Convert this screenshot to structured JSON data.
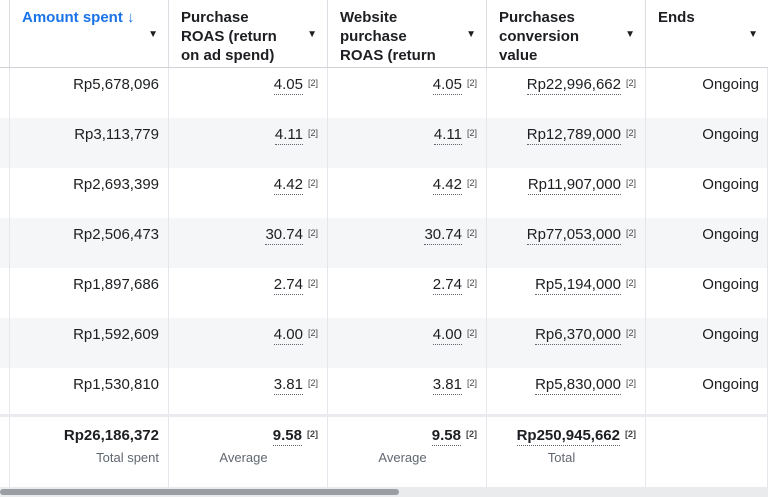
{
  "headers": [
    {
      "label": "Amount spent ↓",
      "sorted": true
    },
    {
      "label": "Purchase ROAS (return on ad spend)"
    },
    {
      "label": "Website purchase ROAS (return on ad…"
    },
    {
      "label": "Purchases conversion value"
    },
    {
      "label": "Ends"
    }
  ],
  "caret_glyph": "▼",
  "footnote": "[2]",
  "rows": [
    {
      "amount": "Rp5,678,096",
      "roas": "4.05",
      "web_roas": "4.05",
      "value": "Rp22,996,662",
      "ends": "Ongoing"
    },
    {
      "amount": "Rp3,113,779",
      "roas": "4.11",
      "web_roas": "4.11",
      "value": "Rp12,789,000",
      "ends": "Ongoing"
    },
    {
      "amount": "Rp2,693,399",
      "roas": "4.42",
      "web_roas": "4.42",
      "value": "Rp11,907,000",
      "ends": "Ongoing"
    },
    {
      "amount": "Rp2,506,473",
      "roas": "30.74",
      "web_roas": "30.74",
      "value": "Rp77,053,000",
      "ends": "Ongoing"
    },
    {
      "amount": "Rp1,897,686",
      "roas": "2.74",
      "web_roas": "2.74",
      "value": "Rp5,194,000",
      "ends": "Ongoing"
    },
    {
      "amount": "Rp1,592,609",
      "roas": "4.00",
      "web_roas": "4.00",
      "value": "Rp6,370,000",
      "ends": "Ongoing"
    },
    {
      "amount": "Rp1,530,810",
      "roas": "3.81",
      "web_roas": "3.81",
      "value": "Rp5,830,000",
      "ends": "Ongoing"
    }
  ],
  "totals": {
    "amount": "Rp26,186,372",
    "amount_label": "Total spent",
    "roas": "9.58",
    "roas_label": "Average",
    "web_roas": "9.58",
    "web_roas_label": "Average",
    "value": "Rp250,945,662",
    "value_label": "Total"
  },
  "colors": {
    "accent": "#1a73e8",
    "row_alt": "#f5f6f7"
  },
  "scroll": {
    "horizontal_thumb_fraction": 0.52
  }
}
